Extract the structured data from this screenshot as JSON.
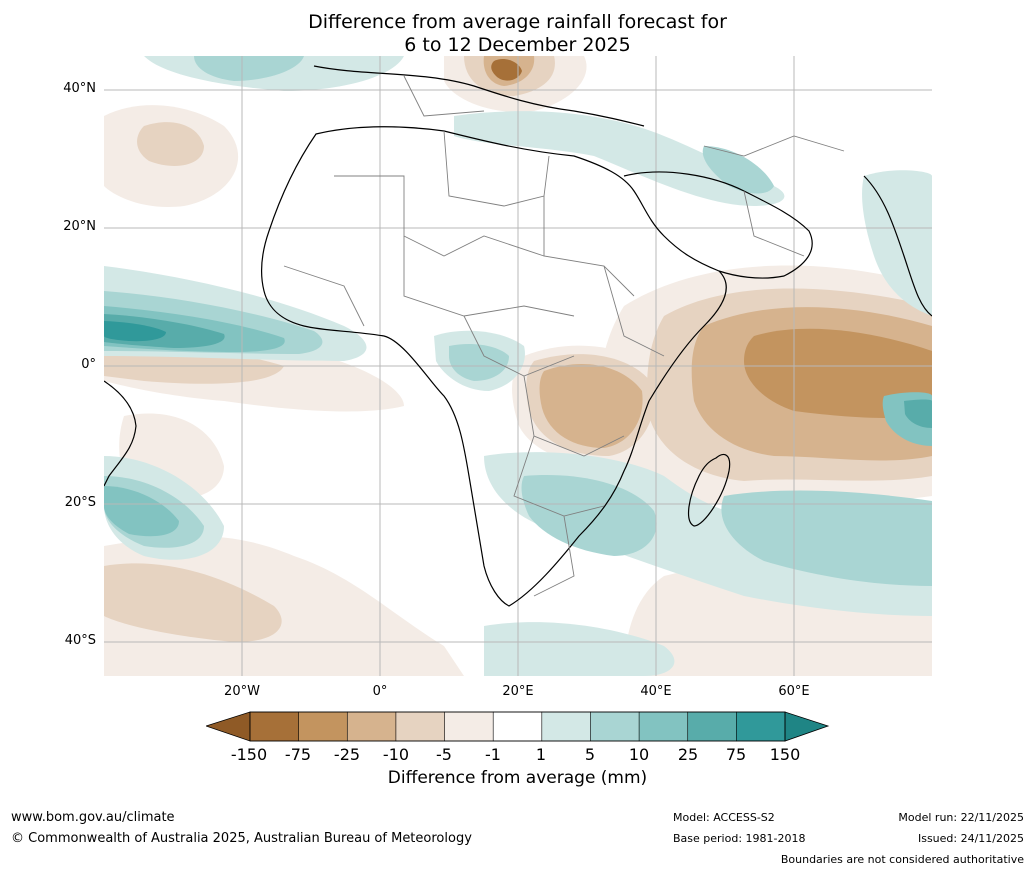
{
  "title": {
    "line1": "Difference from average rainfall forecast for",
    "line2": "6 to 12 December 2025"
  },
  "map": {
    "region": "Africa",
    "lat_labels": [
      "40°N",
      "20°N",
      "0°",
      "20°S",
      "40°S"
    ],
    "lon_labels": [
      "20°W",
      "0°",
      "20°E",
      "40°E",
      "60°E"
    ]
  },
  "colorbar": {
    "ticks": [
      "-150",
      "-75",
      "-25",
      "-10",
      "-5",
      "-1",
      "1",
      "5",
      "10",
      "25",
      "75",
      "150"
    ],
    "colors": [
      "#a67038",
      "#c3945f",
      "#d6b38e",
      "#e6d3c1",
      "#f4ece6",
      "#ffffff",
      "#d3e8e6",
      "#a9d5d3",
      "#82c3c1",
      "#58acaa",
      "#30999a"
    ],
    "under_color": "#8f5a26",
    "over_color": "#1f8585",
    "label": "Difference from average (mm)"
  },
  "footer": {
    "website": "www.bom.gov.au/climate",
    "copyright": "© Commonwealth of Australia 2025, Australian Bureau of Meteorology",
    "model": "Model: ACCESS-S2",
    "base_period": "Base period: 1981-2018",
    "model_run": "Model run: 22/11/2025",
    "issued": "Issued: 24/11/2025",
    "disclaimer": "Boundaries are not considered authoritative"
  }
}
